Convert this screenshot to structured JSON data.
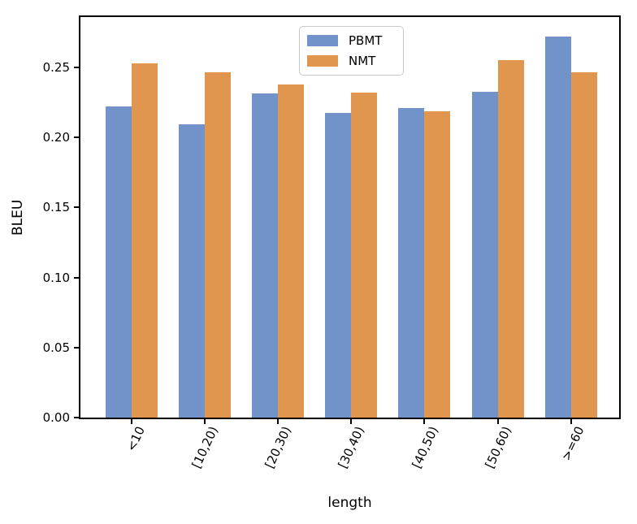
{
  "chart_data": {
    "type": "bar",
    "title": "",
    "xlabel": "length",
    "ylabel": "BLEU",
    "categories": [
      "<10",
      "[10,20)",
      "[20,30)",
      "[30,40)",
      "[40,50)",
      "[50,60)",
      ">=60"
    ],
    "series": [
      {
        "name": "PBMT",
        "color": "#7292ca",
        "values": [
          0.222,
          0.2095,
          0.2315,
          0.2175,
          0.221,
          0.2325,
          0.272
        ]
      },
      {
        "name": "NMT",
        "color": "#e0964e",
        "values": [
          0.253,
          0.2465,
          0.238,
          0.232,
          0.2185,
          0.2555,
          0.2465
        ]
      }
    ],
    "ylim": [
      0,
      0.286
    ],
    "yticks": [
      0.0,
      0.05,
      0.1,
      0.15,
      0.2,
      0.25
    ],
    "ytick_labels": [
      "0.00",
      "0.05",
      "0.10",
      "0.15",
      "0.20",
      "0.25"
    ],
    "xtick_rotation_deg": 65,
    "grid": false,
    "legend_position": "upper center",
    "colors": {
      "spine": "#000000",
      "background": "#ffffff"
    }
  }
}
